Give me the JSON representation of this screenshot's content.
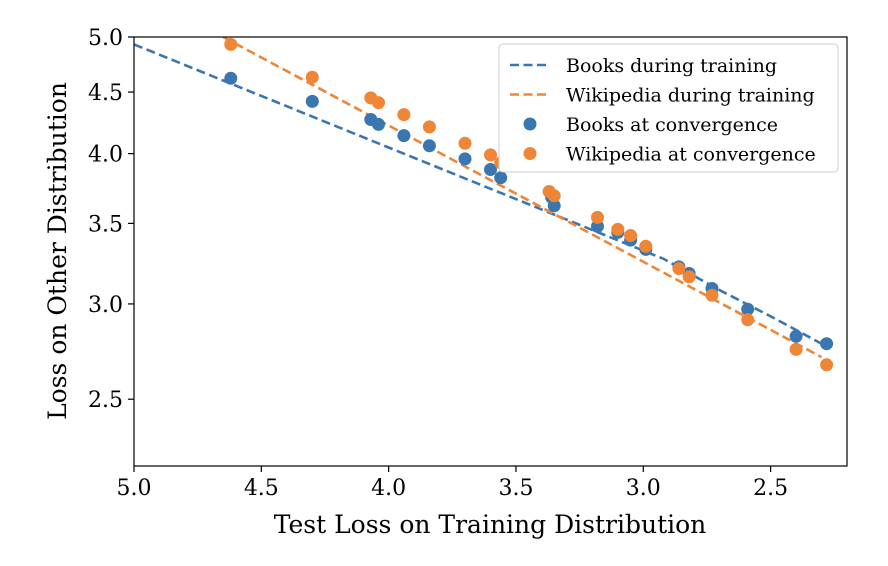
{
  "chart_data": {
    "type": "scatter",
    "xlabel": "Test Loss on Training Distribution",
    "ylabel": "Loss on Other Distribution",
    "x_axis_inverted": true,
    "x_scale": "linear",
    "y_scale": "log",
    "xlim": [
      5.0,
      2.2
    ],
    "ylim": [
      2.2,
      5.0
    ],
    "x_ticks": [
      "5.0",
      "4.5",
      "4.0",
      "3.5",
      "3.0",
      "2.5"
    ],
    "y_ticks": [
      "2.5",
      "3.0",
      "3.5",
      "4.0",
      "4.5",
      "5.0"
    ],
    "grid": false,
    "legend_position": "top-right",
    "colors": {
      "books": "#3a76af",
      "wikipedia": "#ef8536"
    },
    "series": [
      {
        "name": "Books during training",
        "kind": "dashed-line",
        "color": "#3a76af",
        "points": [
          [
            5.0,
            4.93
          ],
          [
            2.92,
            3.27
          ],
          [
            2.7,
            3.08
          ],
          [
            2.5,
            2.93
          ],
          [
            2.3,
            2.78
          ]
        ]
      },
      {
        "name": "Wikipedia during training",
        "kind": "dashed-line",
        "color": "#ef8536",
        "points": [
          [
            4.65,
            5.0
          ],
          [
            2.3,
            2.71
          ]
        ]
      },
      {
        "name": "Books at convergence",
        "kind": "scatter",
        "color": "#3a76af",
        "points": [
          [
            4.62,
            4.62
          ],
          [
            4.3,
            4.42
          ],
          [
            4.07,
            4.27
          ],
          [
            4.04,
            4.23
          ],
          [
            3.94,
            4.14
          ],
          [
            3.84,
            4.06
          ],
          [
            3.7,
            3.96
          ],
          [
            3.6,
            3.88
          ],
          [
            3.56,
            3.82
          ],
          [
            3.36,
            3.68
          ],
          [
            3.35,
            3.62
          ],
          [
            3.18,
            3.48
          ],
          [
            3.1,
            3.44
          ],
          [
            3.05,
            3.39
          ],
          [
            2.99,
            3.33
          ],
          [
            2.86,
            3.22
          ],
          [
            2.82,
            3.18
          ],
          [
            2.73,
            3.09
          ],
          [
            2.59,
            2.97
          ],
          [
            2.4,
            2.82
          ],
          [
            2.28,
            2.78
          ]
        ]
      },
      {
        "name": "Wikipedia at convergence",
        "kind": "scatter",
        "color": "#ef8536",
        "points": [
          [
            4.62,
            4.93
          ],
          [
            4.3,
            4.63
          ],
          [
            4.07,
            4.45
          ],
          [
            4.04,
            4.41
          ],
          [
            3.94,
            4.31
          ],
          [
            3.84,
            4.21
          ],
          [
            3.7,
            4.08
          ],
          [
            3.6,
            3.99
          ],
          [
            3.56,
            3.93
          ],
          [
            3.37,
            3.72
          ],
          [
            3.35,
            3.69
          ],
          [
            3.18,
            3.54
          ],
          [
            3.1,
            3.46
          ],
          [
            3.05,
            3.42
          ],
          [
            2.99,
            3.35
          ],
          [
            2.86,
            3.21
          ],
          [
            2.82,
            3.16
          ],
          [
            2.73,
            3.05
          ],
          [
            2.59,
            2.91
          ],
          [
            2.4,
            2.75
          ],
          [
            2.28,
            2.67
          ]
        ]
      }
    ]
  }
}
